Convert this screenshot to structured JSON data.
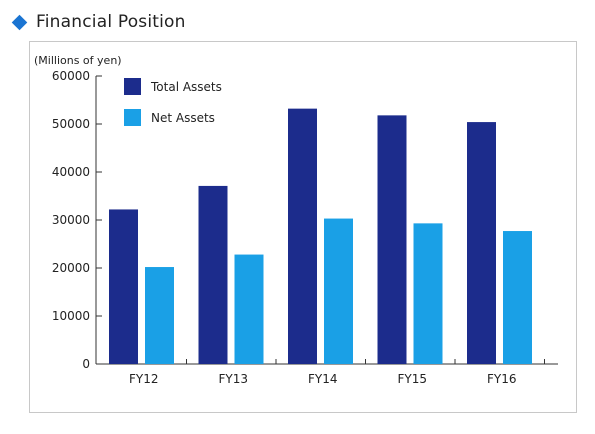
{
  "header": {
    "title": "Financial Position",
    "marker_color": "#1a74d2"
  },
  "chart_data": {
    "type": "bar",
    "ylabel": "(Millions of yen)",
    "categories": [
      "FY12",
      "FY13",
      "FY14",
      "FY15",
      "FY16"
    ],
    "ylim": [
      0,
      60000
    ],
    "yticks": [
      0,
      10000,
      20000,
      30000,
      40000,
      50000,
      60000
    ],
    "legend_position": "top-left",
    "grid": false,
    "series": [
      {
        "name": "Total Assets",
        "color": "#1c2c8c",
        "values": [
          32200,
          37100,
          53200,
          51800,
          50400
        ]
      },
      {
        "name": "Net Assets",
        "color": "#1aa0e6",
        "values": [
          20200,
          22800,
          30300,
          29300,
          27700
        ]
      }
    ]
  }
}
